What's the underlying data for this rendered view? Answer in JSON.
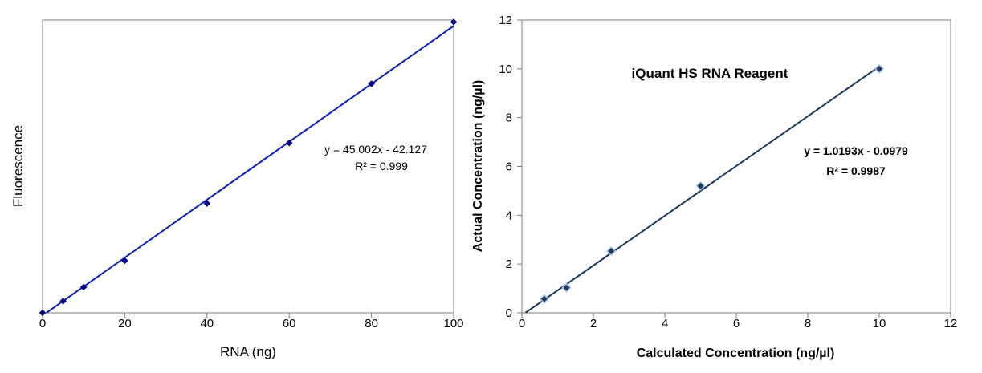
{
  "chart_data": [
    {
      "type": "scatter",
      "title": "",
      "xlabel": "RNA (ng)",
      "ylabel": "Fluorescence",
      "xlim": [
        0,
        100
      ],
      "ylim": [
        0,
        4550
      ],
      "x_ticks": [
        "0",
        "20",
        "40",
        "60",
        "80",
        "100"
      ],
      "y_ticks": [],
      "grid": false,
      "legend": "none",
      "series": [
        {
          "x": [
            0,
            5,
            10,
            20,
            40,
            60,
            80,
            100
          ],
          "y": [
            0,
            183,
            400,
            810,
            1700,
            2640,
            3560,
            4520
          ],
          "color": "#00008b",
          "marker": "diamond",
          "trendline": {
            "slope": 45.002,
            "intercept": -42.127,
            "color": "#0a1ec8"
          }
        }
      ],
      "annotations": [
        "y = 45.002x - 42.127",
        "R² = 0.999"
      ]
    },
    {
      "type": "scatter",
      "title": "iQuant HS RNA Reagent",
      "xlabel": "Calculated Concentration (ng/µl)",
      "ylabel": "Actual Concentration (ng/µl)",
      "xlim": [
        0,
        12
      ],
      "ylim": [
        0,
        12
      ],
      "x_ticks": [
        "0",
        "2",
        "4",
        "6",
        "8",
        "10",
        "12"
      ],
      "y_ticks": [
        "0",
        "2",
        "4",
        "6",
        "8",
        "10",
        "12"
      ],
      "grid": false,
      "legend": "none",
      "series": [
        {
          "x": [
            0.625,
            1.25,
            2.5,
            5,
            10
          ],
          "y": [
            0.57,
            1.03,
            2.53,
            5.2,
            10.0
          ],
          "color": "#1f3a5a",
          "marker": "diamond",
          "trendline": {
            "slope": 1.0193,
            "intercept": -0.0979,
            "color": "#17375e"
          }
        }
      ],
      "annotations": [
        "y = 1.0193x - 0.0979",
        "R² = 0.9987"
      ]
    }
  ]
}
